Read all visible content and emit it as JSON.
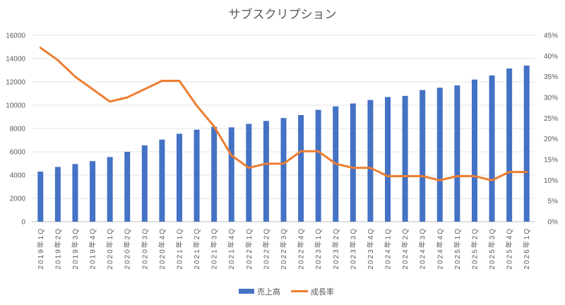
{
  "chart_data": {
    "type": "bar",
    "title": "サブスクリプション",
    "categories": [
      "2019年1Q",
      "2019年2Q",
      "2019年3Q",
      "2019年4Q",
      "2020年1Q",
      "2020年2Q",
      "2020年3Q",
      "2020年4Q",
      "2021年1Q",
      "2021年2Q",
      "2021年3Q",
      "2021年4Q",
      "2022年1Q",
      "2022年2Q",
      "2022年3Q",
      "2022年4Q",
      "2023年1Q",
      "2023年2Q",
      "2023年3Q",
      "2023年4Q",
      "2024年1Q",
      "2024年2Q",
      "2024年3Q",
      "2024年4Q",
      "2025年1Q",
      "2025年2Q",
      "2025年3Q",
      "2025年4Q",
      "2026年1Q"
    ],
    "series": [
      {
        "name": "売上高",
        "type": "bar",
        "axis": "left",
        "color": "#4472C4",
        "values": [
          4300,
          4700,
          4950,
          5200,
          5550,
          6000,
          6550,
          7050,
          7550,
          7900,
          8150,
          8100,
          8400,
          8650,
          8900,
          9150,
          9600,
          9900,
          10150,
          10450,
          10700,
          10800,
          11300,
          11500,
          11700,
          12200,
          12550,
          13150,
          13400
        ]
      },
      {
        "name": "成長率",
        "type": "line",
        "axis": "right",
        "color": "#ED7D31",
        "values": [
          42,
          39,
          35,
          32,
          29,
          30,
          32,
          34,
          34,
          28,
          23,
          16,
          13,
          14,
          14,
          17,
          17,
          14,
          13,
          13,
          11,
          11,
          11,
          10,
          11,
          11,
          10,
          12,
          12
        ]
      }
    ],
    "y_left": {
      "min": 0,
      "max": 16000,
      "ticks": [
        "0",
        "2000",
        "4000",
        "6000",
        "8000",
        "10000",
        "12000",
        "14000",
        "16000"
      ]
    },
    "y_right": {
      "min": 0,
      "max": 45,
      "ticks": [
        "0%",
        "5%",
        "10%",
        "15%",
        "20%",
        "25%",
        "30%",
        "35%",
        "40%",
        "45%"
      ]
    },
    "grid": true,
    "legend_position": "bottom"
  }
}
